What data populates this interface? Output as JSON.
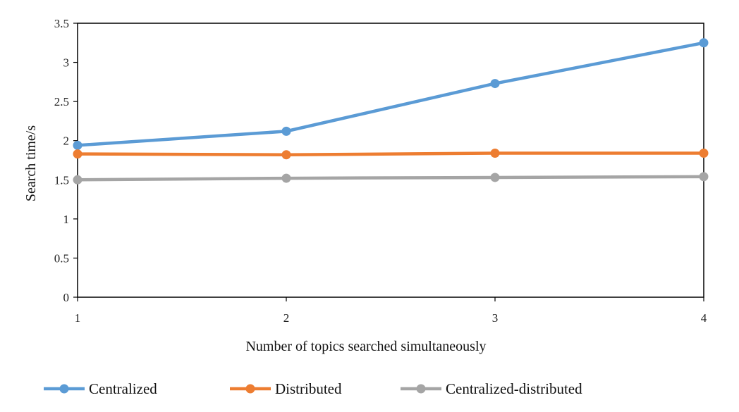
{
  "chart_data": {
    "type": "line",
    "title": "",
    "xlabel": "Number of topics searched simultaneously",
    "ylabel": "Search time/s",
    "x": [
      1,
      2,
      3,
      4
    ],
    "xticks": [
      "1",
      "2",
      "3",
      "4"
    ],
    "xlim": [
      1,
      4
    ],
    "ylim": [
      0,
      3.5
    ],
    "yticks": [
      "0",
      "0.5",
      "1",
      "1.5",
      "2",
      "2.5",
      "3",
      "3.5"
    ],
    "grid": false,
    "legend_position": "bottom",
    "series": [
      {
        "name": "Centralized",
        "color": "#5b9bd5",
        "values": [
          1.94,
          2.12,
          2.73,
          3.25
        ]
      },
      {
        "name": "Distributed",
        "color": "#ed7d31",
        "values": [
          1.83,
          1.82,
          1.84,
          1.84
        ]
      },
      {
        "name": "Centralized-distributed",
        "color": "#a5a5a5",
        "values": [
          1.5,
          1.52,
          1.53,
          1.54
        ]
      }
    ]
  }
}
